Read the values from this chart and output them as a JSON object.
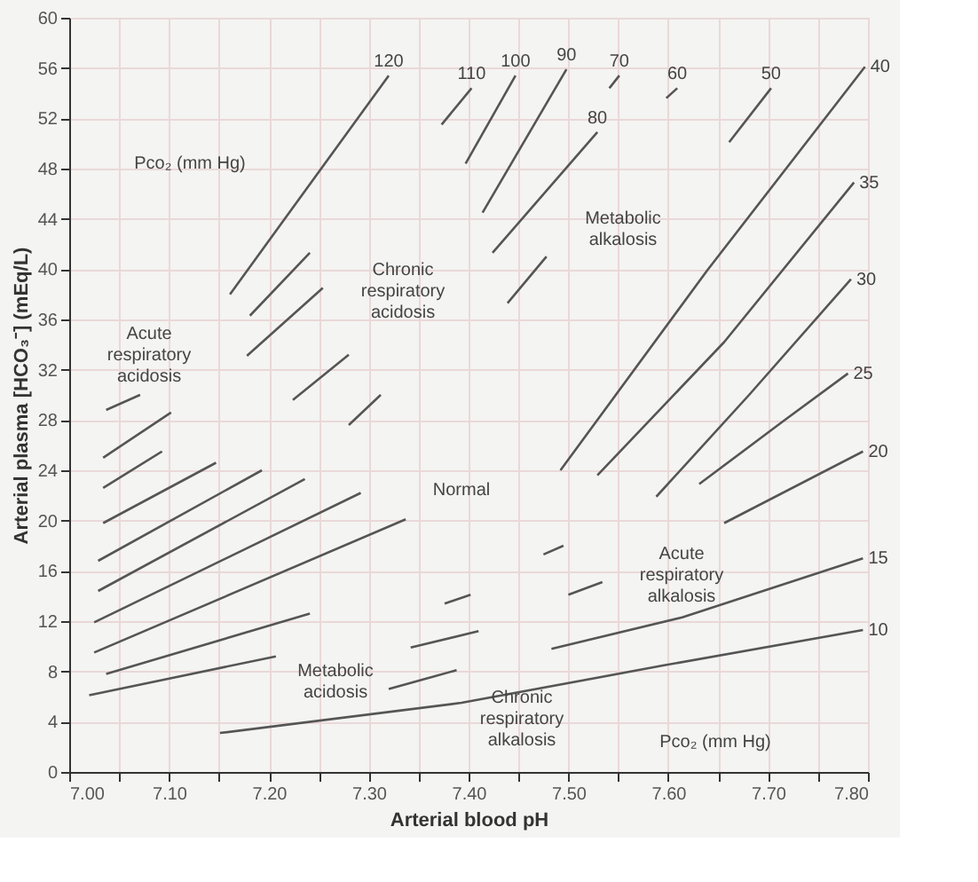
{
  "chart_data": {
    "type": "line",
    "xlabel": "Arterial blood pH",
    "ylabel": "Arterial plasma [HCO₃⁻] (mEq/L)",
    "xlim": [
      7.0,
      7.8
    ],
    "ylim": [
      0,
      60
    ],
    "xticks": [
      {
        "value": 7.0,
        "label": "7.00"
      },
      {
        "value": 7.05,
        "label": null
      },
      {
        "value": 7.1,
        "label": "7.10"
      },
      {
        "value": 7.15,
        "label": null
      },
      {
        "value": 7.2,
        "label": "7.20"
      },
      {
        "value": 7.25,
        "label": null
      },
      {
        "value": 7.3,
        "label": "7.30"
      },
      {
        "value": 7.35,
        "label": null
      },
      {
        "value": 7.4,
        "label": "7.40"
      },
      {
        "value": 7.45,
        "label": null
      },
      {
        "value": 7.5,
        "label": "7.50"
      },
      {
        "value": 7.55,
        "label": null
      },
      {
        "value": 7.6,
        "label": "7.60"
      },
      {
        "value": 7.65,
        "label": null
      },
      {
        "value": 7.7,
        "label": "7.70"
      },
      {
        "value": 7.75,
        "label": null
      },
      {
        "value": 7.8,
        "label": "7.80"
      }
    ],
    "yticks": [
      0,
      4,
      8,
      12,
      16,
      20,
      24,
      28,
      32,
      36,
      40,
      44,
      48,
      52,
      56,
      60
    ],
    "grid": true,
    "legend": false,
    "marker": "none",
    "line_style": "solid",
    "series": [
      {
        "name": "120",
        "color": "#555555",
        "x": [
          7.32,
          7.161
        ],
        "values": [
          55.4,
          38.0
        ]
      },
      {
        "name": "110",
        "color": "#555555",
        "x": [
          7.403,
          7.373
        ],
        "values": [
          54.4,
          51.5
        ]
      },
      {
        "name": "100",
        "color": "#555555",
        "x": [
          7.447,
          7.397
        ],
        "values": [
          55.4,
          48.4
        ]
      },
      {
        "name": "90",
        "color": "#555555",
        "x": [
          7.498,
          7.414
        ],
        "values": [
          55.9,
          44.5
        ]
      },
      {
        "name": "80",
        "color": "#555555",
        "x": [
          7.529,
          7.424
        ],
        "values": [
          50.9,
          41.3
        ]
      },
      {
        "name": "70",
        "color": "#555555",
        "x": [
          7.551,
          7.541
        ],
        "values": [
          55.4,
          54.4
        ]
      },
      {
        "color": "#555555",
        "x": [
          7.478,
          7.439
        ],
        "values": [
          41.0,
          37.3
        ]
      },
      {
        "name": "60",
        "color": "#555555",
        "x": [
          7.609,
          7.598
        ],
        "values": [
          54.4,
          53.6
        ]
      },
      {
        "name": "50",
        "color": "#555555",
        "x": [
          7.703,
          7.661
        ],
        "values": [
          54.4,
          50.1
        ]
      },
      {
        "name": "40",
        "color": "#555555",
        "x": [
          7.797,
          7.639,
          7.492
        ],
        "values": [
          56.1,
          39.9,
          24.0
        ]
      },
      {
        "name": "35",
        "color": "#555555",
        "x": [
          7.786,
          7.656,
          7.529
        ],
        "values": [
          46.9,
          34.2,
          23.6
        ]
      },
      {
        "name": "30",
        "color": "#555555",
        "x": [
          7.783,
          7.681,
          7.588
        ],
        "values": [
          39.2,
          30.0,
          21.9
        ]
      },
      {
        "name": "25",
        "color": "#555555",
        "x": [
          7.78,
          7.715,
          7.631
        ],
        "values": [
          31.7,
          27.9,
          22.9
        ]
      },
      {
        "name": "20",
        "color": "#555555",
        "x": [
          7.795,
          7.656
        ],
        "values": [
          25.5,
          19.8
        ]
      },
      {
        "color": "#555555",
        "x": [
          7.534,
          7.5
        ],
        "values": [
          15.1,
          14.1
        ]
      },
      {
        "name": "15",
        "color": "#555555",
        "x": [
          7.795,
          7.614,
          7.483
        ],
        "values": [
          17.0,
          12.3,
          9.8
        ]
      },
      {
        "name": "10",
        "color": "#555555",
        "x": [
          7.795,
          7.597,
          7.393,
          7.151
        ],
        "values": [
          11.3,
          8.5,
          5.5,
          3.1
        ]
      },
      {
        "color": "#555555",
        "x": [
          7.475,
          7.495
        ],
        "values": [
          17.3,
          18.0
        ]
      },
      {
        "color": "#555555",
        "x": [
          7.376,
          7.402
        ],
        "values": [
          13.4,
          14.1
        ]
      },
      {
        "color": "#555555",
        "x": [
          7.342,
          7.41
        ],
        "values": [
          9.9,
          11.2
        ]
      },
      {
        "color": "#555555",
        "x": [
          7.32,
          7.388
        ],
        "values": [
          6.6,
          8.1
        ]
      },
      {
        "color": "#555555",
        "x": [
          7.241,
          7.181
        ],
        "values": [
          41.3,
          36.3
        ]
      },
      {
        "color": "#555555",
        "x": [
          7.254,
          7.178
        ],
        "values": [
          38.5,
          33.1
        ]
      },
      {
        "color": "#555555",
        "x": [
          7.28,
          7.224
        ],
        "values": [
          33.2,
          29.6
        ]
      },
      {
        "color": "#555555",
        "x": [
          7.312,
          7.28
        ],
        "values": [
          30.0,
          27.6
        ]
      },
      {
        "color": "#555555",
        "x": [
          7.037,
          7.071
        ],
        "values": [
          28.8,
          30.0
        ]
      },
      {
        "color": "#555555",
        "x": [
          7.034,
          7.102
        ],
        "values": [
          25.0,
          28.6
        ]
      },
      {
        "color": "#555555",
        "x": [
          7.034,
          7.093
        ],
        "values": [
          22.6,
          25.5
        ]
      },
      {
        "color": "#555555",
        "x": [
          7.034,
          7.147
        ],
        "values": [
          19.8,
          24.6
        ]
      },
      {
        "color": "#555555",
        "x": [
          7.029,
          7.193
        ],
        "values": [
          16.8,
          24.0
        ]
      },
      {
        "color": "#555555",
        "x": [
          7.029,
          7.236
        ],
        "values": [
          14.4,
          23.3
        ]
      },
      {
        "color": "#555555",
        "x": [
          7.025,
          7.292
        ],
        "values": [
          11.9,
          22.2
        ]
      },
      {
        "color": "#555555",
        "x": [
          7.025,
          7.337
        ],
        "values": [
          9.5,
          20.1
        ]
      },
      {
        "color": "#555555",
        "x": [
          7.037,
          7.241
        ],
        "values": [
          7.8,
          12.6
        ]
      },
      {
        "color": "#555555",
        "x": [
          7.02,
          7.207
        ],
        "values": [
          6.1,
          9.2
        ]
      }
    ],
    "annotations": [
      "Pco₂ (mm Hg)",
      "Chronic\nrespiratory\nacidosis",
      "Metabolic\nalkalosis",
      "Acute\nrespiratory\nacidosis",
      "Normal",
      "Acute\nrespiratory\nalkalosis",
      "Metabolic\nacidosis",
      "Chronic\nrespiratory\nalkalosis",
      "Pco₂ (mm Hg)"
    ]
  }
}
